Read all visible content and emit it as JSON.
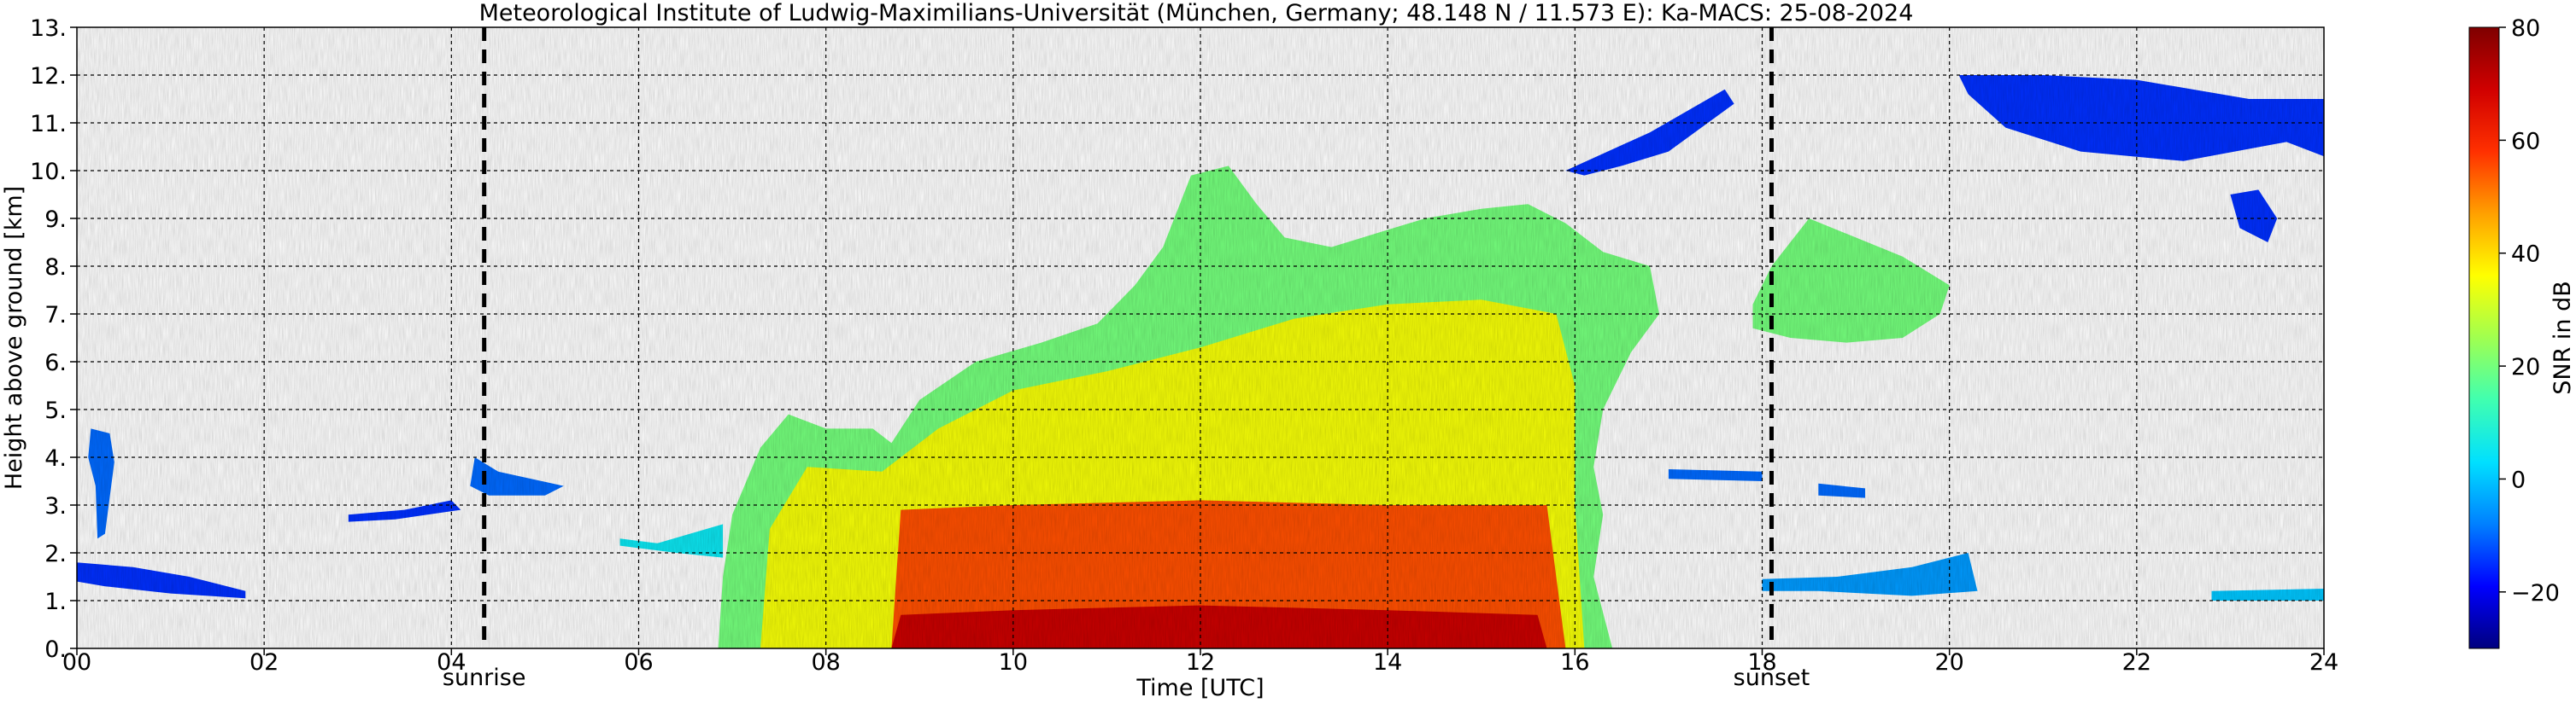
{
  "chart_data": {
    "type": "heatmap",
    "title": "Meteorological Institute of Ludwig-Maximilians-Universität (München, Germany; 48.148 N / 11.573 E):    Ka-MACS: 25-08-2024",
    "xlabel": "Time [UTC]",
    "ylabel": "Height above ground [km]",
    "xlim": [
      0,
      24
    ],
    "ylim": [
      0,
      13
    ],
    "x_ticks": [
      {
        "value": 0,
        "label": "00"
      },
      {
        "value": 2,
        "label": "02"
      },
      {
        "value": 4,
        "label": "04"
      },
      {
        "value": 6,
        "label": "06"
      },
      {
        "value": 8,
        "label": "08"
      },
      {
        "value": 10,
        "label": "10"
      },
      {
        "value": 12,
        "label": "12"
      },
      {
        "value": 14,
        "label": "14"
      },
      {
        "value": 16,
        "label": "16"
      },
      {
        "value": 18,
        "label": "18"
      },
      {
        "value": 20,
        "label": "20"
      },
      {
        "value": 22,
        "label": "22"
      },
      {
        "value": 24,
        "label": "24"
      }
    ],
    "y_ticks": [
      {
        "value": 0,
        "label": "0."
      },
      {
        "value": 1,
        "label": "1."
      },
      {
        "value": 2,
        "label": "2."
      },
      {
        "value": 3,
        "label": "3."
      },
      {
        "value": 4,
        "label": "4."
      },
      {
        "value": 5,
        "label": "5."
      },
      {
        "value": 6,
        "label": "6."
      },
      {
        "value": 7,
        "label": "7."
      },
      {
        "value": 8,
        "label": "8."
      },
      {
        "value": 9,
        "label": "9."
      },
      {
        "value": 10,
        "label": "10."
      },
      {
        "value": 11,
        "label": "11."
      },
      {
        "value": 12,
        "label": "12."
      },
      {
        "value": 13,
        "label": "13."
      }
    ],
    "grid": true,
    "events": [
      {
        "time": 4.35,
        "label": "sunrise"
      },
      {
        "time": 18.1,
        "label": "sunset"
      }
    ],
    "colorbar": {
      "label": "SNR in dB",
      "range": [
        -30,
        80
      ],
      "ticks": [
        {
          "value": -20,
          "label": "−20"
        },
        {
          "value": 0,
          "label": "0"
        },
        {
          "value": 20,
          "label": "20"
        },
        {
          "value": 40,
          "label": "40"
        },
        {
          "value": 60,
          "label": "60"
        },
        {
          "value": 80,
          "label": "80"
        }
      ],
      "stops": [
        "#00007f",
        "#0000ff",
        "#0080ff",
        "#00e0ff",
        "#40ffb0",
        "#a0ff50",
        "#ffff00",
        "#ffa000",
        "#ff3000",
        "#d00000",
        "#7f0000"
      ]
    },
    "regions": [
      {
        "name": "main-cloud-mass",
        "snr": 20,
        "points": [
          [
            6.85,
            0
          ],
          [
            6.9,
            1.5
          ],
          [
            7.0,
            2.8
          ],
          [
            7.3,
            4.2
          ],
          [
            7.6,
            4.9
          ],
          [
            8.0,
            4.6
          ],
          [
            8.5,
            4.6
          ],
          [
            8.7,
            4.3
          ],
          [
            9.0,
            5.2
          ],
          [
            9.6,
            6.0
          ],
          [
            10.3,
            6.4
          ],
          [
            10.9,
            6.8
          ],
          [
            11.3,
            7.6
          ],
          [
            11.6,
            8.4
          ],
          [
            11.9,
            9.9
          ],
          [
            12.3,
            10.1
          ],
          [
            12.6,
            9.3
          ],
          [
            12.9,
            8.6
          ],
          [
            13.4,
            8.4
          ],
          [
            13.9,
            8.7
          ],
          [
            14.4,
            9.0
          ],
          [
            15.0,
            9.2
          ],
          [
            15.5,
            9.3
          ],
          [
            15.9,
            8.9
          ],
          [
            16.3,
            8.3
          ],
          [
            16.8,
            8.0
          ],
          [
            16.9,
            7.0
          ],
          [
            16.6,
            6.2
          ],
          [
            16.3,
            5.0
          ],
          [
            16.2,
            3.8
          ],
          [
            16.3,
            2.8
          ],
          [
            16.2,
            1.5
          ],
          [
            16.4,
            0
          ]
        ]
      },
      {
        "name": "main-cloud-inner",
        "snr": 35,
        "points": [
          [
            7.3,
            0
          ],
          [
            7.4,
            2.5
          ],
          [
            7.8,
            3.8
          ],
          [
            8.6,
            3.7
          ],
          [
            9.2,
            4.6
          ],
          [
            10.0,
            5.4
          ],
          [
            11.0,
            5.8
          ],
          [
            12.0,
            6.3
          ],
          [
            13.0,
            6.9
          ],
          [
            14.0,
            7.2
          ],
          [
            15.0,
            7.3
          ],
          [
            15.8,
            7.0
          ],
          [
            16.0,
            5.5
          ],
          [
            16.0,
            3.0
          ],
          [
            16.1,
            0
          ]
        ]
      },
      {
        "name": "main-cloud-core",
        "snr": 55,
        "points": [
          [
            8.7,
            0
          ],
          [
            8.8,
            2.9
          ],
          [
            10.0,
            3.0
          ],
          [
            12.0,
            3.1
          ],
          [
            14.0,
            3.0
          ],
          [
            15.7,
            3.0
          ],
          [
            15.8,
            1.5
          ],
          [
            15.9,
            0
          ]
        ]
      },
      {
        "name": "main-cloud-base",
        "snr": 70,
        "points": [
          [
            8.7,
            0
          ],
          [
            8.8,
            0.7
          ],
          [
            10.0,
            0.8
          ],
          [
            12.0,
            0.9
          ],
          [
            14.0,
            0.8
          ],
          [
            15.6,
            0.7
          ],
          [
            15.7,
            0
          ]
        ]
      },
      {
        "name": "low-layer-0600",
        "snr": 5,
        "points": [
          [
            5.8,
            2.3
          ],
          [
            6.2,
            2.2
          ],
          [
            6.9,
            2.6
          ],
          [
            6.9,
            1.9
          ],
          [
            6.4,
            2.0
          ],
          [
            5.8,
            2.15
          ]
        ]
      },
      {
        "name": "echo-0015",
        "snr": -10,
        "points": [
          [
            0.15,
            4.6
          ],
          [
            0.35,
            4.5
          ],
          [
            0.4,
            3.9
          ],
          [
            0.3,
            2.4
          ],
          [
            0.22,
            2.3
          ],
          [
            0.2,
            3.4
          ],
          [
            0.12,
            4.0
          ]
        ]
      },
      {
        "name": "low-echo-0000",
        "snr": -15,
        "points": [
          [
            0,
            1.8
          ],
          [
            0.6,
            1.7
          ],
          [
            1.2,
            1.5
          ],
          [
            1.8,
            1.2
          ],
          [
            1.8,
            1.05
          ],
          [
            1.0,
            1.15
          ],
          [
            0.3,
            1.3
          ],
          [
            0,
            1.4
          ]
        ]
      },
      {
        "name": "echo-0300",
        "snr": -15,
        "points": [
          [
            2.9,
            2.8
          ],
          [
            3.5,
            2.9
          ],
          [
            4.0,
            3.1
          ],
          [
            4.1,
            2.9
          ],
          [
            3.4,
            2.7
          ],
          [
            2.9,
            2.65
          ]
        ]
      },
      {
        "name": "echo-0430",
        "snr": -10,
        "points": [
          [
            4.25,
            4.0
          ],
          [
            4.5,
            3.7
          ],
          [
            5.2,
            3.4
          ],
          [
            5.0,
            3.2
          ],
          [
            4.4,
            3.2
          ],
          [
            4.2,
            3.4
          ]
        ]
      },
      {
        "name": "cirrus-1620",
        "snr": -15,
        "points": [
          [
            15.9,
            10.0
          ],
          [
            16.8,
            10.8
          ],
          [
            17.6,
            11.7
          ],
          [
            17.7,
            11.4
          ],
          [
            17.0,
            10.4
          ],
          [
            16.5,
            10.1
          ],
          [
            16.1,
            9.9
          ]
        ]
      },
      {
        "name": "cloud-1830",
        "snr": 20,
        "points": [
          [
            17.9,
            7.2
          ],
          [
            18.1,
            8.0
          ],
          [
            18.5,
            9.0
          ],
          [
            19.0,
            8.6
          ],
          [
            19.5,
            8.2
          ],
          [
            20.0,
            7.6
          ],
          [
            19.9,
            7.0
          ],
          [
            19.5,
            6.5
          ],
          [
            18.9,
            6.4
          ],
          [
            18.3,
            6.5
          ],
          [
            17.9,
            6.7
          ]
        ]
      },
      {
        "name": "cirrus-2000",
        "snr": -15,
        "points": [
          [
            20.1,
            12.0
          ],
          [
            21.0,
            12.0
          ],
          [
            22.0,
            11.9
          ],
          [
            23.2,
            11.5
          ],
          [
            24,
            11.5
          ],
          [
            24,
            10.3
          ],
          [
            23.6,
            10.6
          ],
          [
            22.5,
            10.2
          ],
          [
            21.4,
            10.4
          ],
          [
            20.6,
            10.9
          ],
          [
            20.2,
            11.6
          ]
        ]
      },
      {
        "name": "cirrus-2330",
        "snr": -15,
        "points": [
          [
            23.0,
            9.5
          ],
          [
            23.3,
            9.6
          ],
          [
            23.5,
            9.0
          ],
          [
            23.4,
            8.5
          ],
          [
            23.1,
            8.8
          ]
        ]
      },
      {
        "name": "low-layer-1830",
        "snr": -5,
        "points": [
          [
            18.0,
            1.45
          ],
          [
            18.8,
            1.5
          ],
          [
            19.6,
            1.7
          ],
          [
            20.2,
            2.0
          ],
          [
            20.3,
            1.2
          ],
          [
            19.6,
            1.1
          ],
          [
            18.6,
            1.2
          ],
          [
            18.0,
            1.2
          ]
        ]
      },
      {
        "name": "low-layer-2300",
        "snr": 0,
        "points": [
          [
            22.8,
            1.2
          ],
          [
            24,
            1.25
          ],
          [
            24,
            1.0
          ],
          [
            22.8,
            1.0
          ]
        ]
      },
      {
        "name": "layer-1730",
        "snr": -10,
        "points": [
          [
            17.0,
            3.75
          ],
          [
            18.0,
            3.7
          ],
          [
            18.0,
            3.5
          ],
          [
            17.0,
            3.55
          ]
        ]
      },
      {
        "name": "layer-1900",
        "snr": -10,
        "points": [
          [
            18.6,
            3.45
          ],
          [
            19.1,
            3.35
          ],
          [
            19.1,
            3.15
          ],
          [
            18.6,
            3.2
          ]
        ]
      }
    ]
  }
}
